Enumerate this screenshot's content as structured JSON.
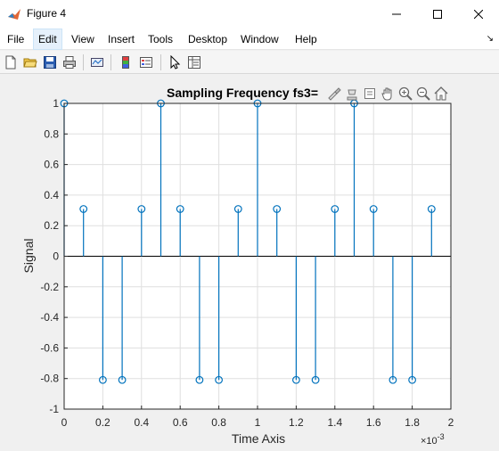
{
  "window": {
    "title": "Figure 4"
  },
  "menu": [
    "File",
    "Edit",
    "View",
    "Insert",
    "Tools",
    "Desktop",
    "Window",
    "Help"
  ],
  "chart_data": {
    "type": "stem",
    "title": "Sampling Frequency fs3=",
    "xlabel": "Time Axis",
    "ylabel": "Signal",
    "x_exponent": "×10",
    "x_exponent_power": "-3",
    "xlim": [
      0,
      2
    ],
    "ylim": [
      -1,
      1
    ],
    "xticks": [
      "0",
      "0.2",
      "0.4",
      "0.6",
      "0.8",
      "1",
      "1.2",
      "1.4",
      "1.6",
      "1.8",
      "2"
    ],
    "yticks": [
      "1",
      "0.8",
      "0.6",
      "0.4",
      "0.2",
      "0",
      "-0.2",
      "-0.4",
      "-0.6",
      "-0.8",
      "-1"
    ],
    "grid": true,
    "x": [
      0,
      0.1,
      0.2,
      0.3,
      0.4,
      0.5,
      0.6,
      0.7,
      0.8,
      0.9,
      1.0,
      1.1,
      1.2,
      1.3,
      1.4,
      1.5,
      1.6,
      1.7,
      1.8,
      1.9
    ],
    "y": [
      1,
      0.309,
      -0.809,
      -0.809,
      0.309,
      1,
      0.309,
      -0.809,
      -0.809,
      0.309,
      1,
      0.309,
      -0.809,
      -0.809,
      0.309,
      1,
      0.309,
      -0.809,
      -0.809,
      0.309
    ],
    "colors": {
      "stem": "#0072bd"
    }
  }
}
